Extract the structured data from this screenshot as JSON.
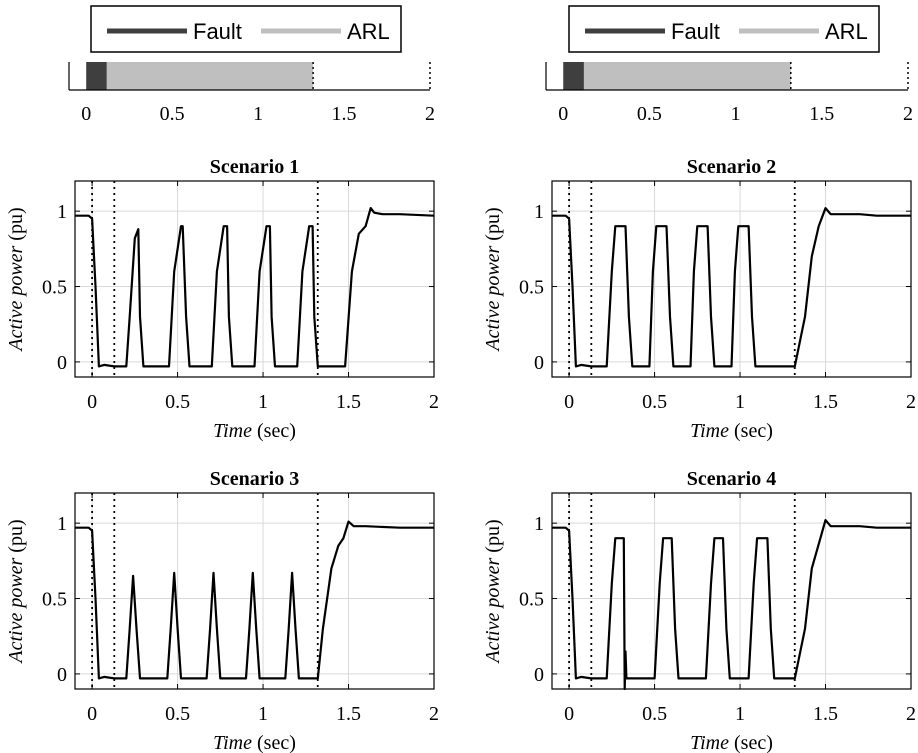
{
  "timeline": {
    "legend": {
      "fault_label": "Fault",
      "arl_label": "ARL"
    },
    "fault_interval": [
      0,
      0.12
    ],
    "arl_interval": [
      0.12,
      1.32
    ],
    "markers": [
      1.32,
      2
    ],
    "xlim": [
      -0.1,
      2
    ],
    "xticks": [
      "0",
      "0.5",
      "1",
      "1.5",
      "2"
    ],
    "colors": {
      "fault": "#3f3f3f",
      "arl": "#bfbfbf"
    }
  },
  "chart_data": [
    {
      "type": "line",
      "title": "Scenario 1",
      "xlabel_italic": "Time",
      "xlabel_unit": "(sec)",
      "ylabel_italic": "Active power",
      "ylabel_unit": "(pu)",
      "xlim": [
        -0.1,
        2
      ],
      "ylim": [
        -0.1,
        1.2
      ],
      "xticks": [
        "0",
        "0.5",
        "1",
        "1.5",
        "2"
      ],
      "yticks": [
        "0",
        "0.5",
        "1"
      ],
      "grid": true,
      "vlines": [
        0,
        0.13,
        1.32
      ],
      "series": [
        {
          "x": [
            -0.1,
            -0.02,
            0,
            0.02,
            0.04,
            0.07,
            0.13,
            0.2,
            0.22,
            0.25,
            0.27,
            0.28,
            0.3,
            0.45,
            0.48,
            0.52,
            0.53,
            0.55,
            0.57,
            0.7,
            0.73,
            0.77,
            0.79,
            0.8,
            0.82,
            0.95,
            0.98,
            1.02,
            1.04,
            1.05,
            1.07,
            1.2,
            1.23,
            1.27,
            1.29,
            1.3,
            1.32,
            1.48,
            1.52,
            1.56,
            1.6,
            1.63,
            1.65,
            1.7,
            1.8,
            2
          ],
          "y": [
            0.97,
            0.97,
            0.95,
            0.5,
            -0.03,
            -0.02,
            -0.03,
            -0.03,
            0.3,
            0.82,
            0.88,
            0.3,
            -0.03,
            -0.03,
            0.6,
            0.9,
            0.9,
            0.3,
            -0.03,
            -0.03,
            0.6,
            0.9,
            0.9,
            0.3,
            -0.03,
            -0.03,
            0.6,
            0.9,
            0.9,
            0.3,
            -0.03,
            -0.03,
            0.6,
            0.9,
            0.9,
            0.3,
            -0.03,
            -0.03,
            0.6,
            0.85,
            0.9,
            1.02,
            0.99,
            0.98,
            0.98,
            0.97
          ]
        }
      ]
    },
    {
      "type": "line",
      "title": "Scenario 2",
      "xlabel_italic": "Time",
      "xlabel_unit": "(sec)",
      "ylabel_italic": "Active power",
      "ylabel_unit": "(pu)",
      "xlim": [
        -0.1,
        2
      ],
      "ylim": [
        -0.1,
        1.2
      ],
      "xticks": [
        "0",
        "0.5",
        "1",
        "1.5",
        "2"
      ],
      "yticks": [
        "0",
        "0.5",
        "1"
      ],
      "grid": true,
      "vlines": [
        0,
        0.13,
        1.32
      ],
      "series": [
        {
          "x": [
            -0.1,
            -0.02,
            0,
            0.02,
            0.04,
            0.07,
            0.13,
            0.22,
            0.25,
            0.27,
            0.33,
            0.35,
            0.37,
            0.47,
            0.49,
            0.51,
            0.57,
            0.59,
            0.61,
            0.71,
            0.73,
            0.75,
            0.81,
            0.83,
            0.85,
            0.95,
            0.97,
            0.99,
            1.05,
            1.07,
            1.09,
            1.18,
            1.2,
            1.22,
            1.32,
            1.38,
            1.42,
            1.46,
            1.5,
            1.53,
            1.56,
            1.7,
            1.8,
            2
          ],
          "y": [
            0.97,
            0.97,
            0.95,
            0.5,
            -0.03,
            -0.02,
            -0.03,
            -0.03,
            0.6,
            0.9,
            0.9,
            0.3,
            -0.03,
            -0.03,
            0.6,
            0.9,
            0.9,
            0.3,
            -0.03,
            -0.03,
            0.6,
            0.9,
            0.9,
            0.3,
            -0.03,
            -0.03,
            0.6,
            0.9,
            0.9,
            0.3,
            -0.03,
            -0.03,
            -0.03,
            -0.03,
            -0.03,
            0.3,
            0.7,
            0.9,
            1.02,
            0.98,
            0.98,
            0.98,
            0.97,
            0.97
          ]
        }
      ]
    },
    {
      "type": "line",
      "title": "Scenario 3",
      "xlabel_italic": "Time",
      "xlabel_unit": "(sec)",
      "ylabel_italic": "Active power",
      "ylabel_unit": "(pu)",
      "xlim": [
        -0.1,
        2
      ],
      "ylim": [
        -0.1,
        1.2
      ],
      "xticks": [
        "0",
        "0.5",
        "1",
        "1.5",
        "2"
      ],
      "yticks": [
        "0",
        "0.5",
        "1"
      ],
      "grid": true,
      "vlines": [
        0,
        0.13,
        1.32
      ],
      "series": [
        {
          "x": [
            -0.1,
            -0.02,
            0,
            0.02,
            0.04,
            0.07,
            0.13,
            0.2,
            0.22,
            0.24,
            0.26,
            0.28,
            0.44,
            0.46,
            0.48,
            0.5,
            0.52,
            0.67,
            0.69,
            0.71,
            0.73,
            0.75,
            0.9,
            0.92,
            0.94,
            0.96,
            0.98,
            1.13,
            1.15,
            1.17,
            1.19,
            1.21,
            1.32,
            1.35,
            1.4,
            1.44,
            1.47,
            1.5,
            1.53,
            1.6,
            1.8,
            2
          ],
          "y": [
            0.97,
            0.97,
            0.95,
            0.5,
            -0.03,
            -0.02,
            -0.03,
            -0.03,
            0.3,
            0.65,
            0.3,
            -0.03,
            -0.03,
            0.3,
            0.67,
            0.3,
            -0.03,
            -0.03,
            0.3,
            0.67,
            0.3,
            -0.03,
            -0.03,
            0.3,
            0.67,
            0.3,
            -0.03,
            -0.03,
            0.3,
            0.67,
            0.3,
            -0.03,
            -0.03,
            0.3,
            0.7,
            0.85,
            0.9,
            1.01,
            0.98,
            0.98,
            0.97,
            0.97
          ]
        }
      ]
    },
    {
      "type": "line",
      "title": "Scenario 4",
      "xlabel_italic": "Time",
      "xlabel_unit": "(sec)",
      "ylabel_italic": "Active power",
      "ylabel_unit": "(pu)",
      "xlim": [
        -0.1,
        2
      ],
      "ylim": [
        -0.1,
        1.2
      ],
      "xticks": [
        "0",
        "0.5",
        "1",
        "1.5",
        "2"
      ],
      "yticks": [
        "0",
        "0.5",
        "1"
      ],
      "grid": true,
      "vlines": [
        0,
        0.13,
        1.32
      ],
      "series": [
        {
          "x": [
            -0.1,
            -0.02,
            0,
            0.02,
            0.04,
            0.07,
            0.13,
            0.22,
            0.25,
            0.27,
            0.32,
            0.325,
            0.33,
            0.335,
            0.34,
            0.36,
            0.5,
            0.53,
            0.55,
            0.6,
            0.62,
            0.64,
            0.8,
            0.83,
            0.85,
            0.9,
            0.92,
            0.94,
            1.05,
            1.08,
            1.1,
            1.16,
            1.18,
            1.2,
            1.32,
            1.38,
            1.42,
            1.47,
            1.5,
            1.53,
            1.56,
            1.7,
            1.8,
            2
          ],
          "y": [
            0.97,
            0.97,
            0.95,
            0.5,
            -0.03,
            -0.02,
            -0.03,
            -0.03,
            0.6,
            0.9,
            0.9,
            -0.1,
            0.15,
            -0.03,
            -0.03,
            -0.03,
            -0.03,
            0.6,
            0.9,
            0.9,
            0.3,
            -0.03,
            -0.03,
            0.6,
            0.9,
            0.9,
            0.3,
            -0.03,
            -0.03,
            0.6,
            0.9,
            0.9,
            0.3,
            -0.03,
            -0.03,
            0.3,
            0.7,
            0.9,
            1.02,
            0.98,
            0.98,
            0.98,
            0.97,
            0.97
          ]
        }
      ]
    }
  ]
}
